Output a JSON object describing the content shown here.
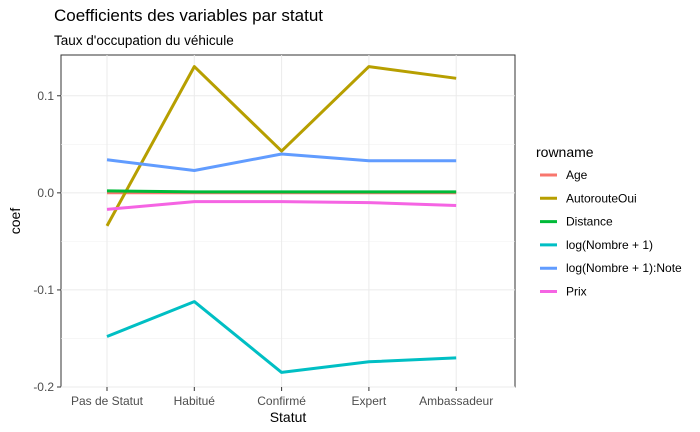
{
  "chart_data": {
    "type": "line",
    "title": "Coefficients des variables par statut",
    "subtitle": "Taux d'occupation du véhicule",
    "xlabel": "Statut",
    "ylabel": "coef",
    "categories": [
      "Pas de Statut",
      "Habitué",
      "Confirmé",
      "Expert",
      "Ambassadeur"
    ],
    "ylim": [
      -0.2,
      0.142
    ],
    "yticks": [
      0.1,
      0.0,
      -0.1,
      -0.2
    ],
    "ytick_labels": [
      "0.1",
      "0.0",
      "-0.1",
      "-0.2"
    ],
    "grid": true,
    "legend_title": "rowname",
    "legend_position": "right",
    "series": [
      {
        "name": "Age",
        "color": "#F8766D",
        "values": [
          0.0,
          0.0,
          0.0,
          0.0,
          0.0
        ]
      },
      {
        "name": "AutorouteOui",
        "color": "#B79F00",
        "values": [
          -0.034,
          0.13,
          0.043,
          0.13,
          0.118
        ]
      },
      {
        "name": "Distance",
        "color": "#00BA38",
        "values": [
          0.002,
          0.001,
          0.001,
          0.001,
          0.001
        ]
      },
      {
        "name": "log(Nombre + 1)",
        "color": "#00BFC4",
        "values": [
          -0.148,
          -0.112,
          -0.185,
          -0.174,
          -0.17
        ]
      },
      {
        "name": "log(Nombre + 1):Note",
        "color": "#619CFF",
        "values": [
          0.034,
          0.023,
          0.04,
          0.033,
          0.033
        ]
      },
      {
        "name": "Prix",
        "color": "#F564E3",
        "values": [
          -0.017,
          -0.009,
          -0.009,
          -0.01,
          -0.013
        ]
      }
    ]
  }
}
